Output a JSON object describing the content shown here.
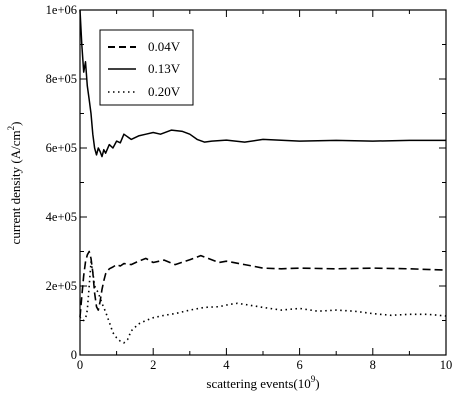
{
  "chart_data": {
    "type": "line",
    "title": "",
    "xlabel": "scattering events(10",
    "xlabel_exp": "9",
    "xlabel_tail": ")",
    "ylabel": "current density (A/cm",
    "ylabel_exp": "2",
    "ylabel_tail": ")",
    "xlim": [
      0,
      10
    ],
    "ylim": [
      0,
      1000000
    ],
    "xticks": [
      0,
      2,
      4,
      6,
      8,
      10
    ],
    "xtick_labels": [
      "0",
      "2",
      "4",
      "6",
      "8",
      "10"
    ],
    "yticks": [
      0,
      200000,
      400000,
      600000,
      800000,
      1000000
    ],
    "ytick_labels": [
      "0",
      "2e+05",
      "4e+05",
      "6e+05",
      "8e+05",
      "1e+06"
    ],
    "grid": false,
    "legend_position": "top-left",
    "series": [
      {
        "name": "0.04V",
        "style": "dashed",
        "color": "#000000",
        "x": [
          0,
          0.05,
          0.1,
          0.15,
          0.2,
          0.25,
          0.3,
          0.35,
          0.4,
          0.45,
          0.5,
          0.55,
          0.6,
          0.65,
          0.7,
          0.8,
          0.9,
          1.0,
          1.1,
          1.2,
          1.4,
          1.6,
          1.8,
          2.0,
          2.3,
          2.6,
          3.0,
          3.3,
          3.5,
          3.8,
          4.0,
          4.5,
          5.0,
          5.5,
          6.0,
          7.0,
          8.0,
          9.0,
          10.0
        ],
        "y": [
          110000,
          170000,
          230000,
          270000,
          290000,
          300000,
          280000,
          240000,
          180000,
          140000,
          130000,
          155000,
          190000,
          215000,
          235000,
          250000,
          255000,
          262000,
          258000,
          265000,
          262000,
          272000,
          280000,
          268000,
          275000,
          262000,
          276000,
          288000,
          280000,
          268000,
          272000,
          262000,
          252000,
          250000,
          252000,
          250000,
          252000,
          250000,
          246000
        ]
      },
      {
        "name": "0.13V",
        "style": "solid",
        "color": "#000000",
        "x": [
          0,
          0.05,
          0.1,
          0.15,
          0.2,
          0.25,
          0.3,
          0.35,
          0.4,
          0.45,
          0.5,
          0.55,
          0.6,
          0.65,
          0.7,
          0.8,
          0.9,
          1.0,
          1.1,
          1.2,
          1.4,
          1.6,
          1.8,
          2.0,
          2.2,
          2.5,
          2.8,
          3.0,
          3.2,
          3.4,
          3.6,
          4.0,
          4.5,
          5.0,
          6.0,
          7.0,
          8.0,
          9.0,
          10.0
        ],
        "y": [
          1000000,
          900000,
          820000,
          850000,
          780000,
          740000,
          700000,
          640000,
          600000,
          580000,
          600000,
          590000,
          575000,
          595000,
          585000,
          610000,
          600000,
          620000,
          615000,
          640000,
          625000,
          635000,
          640000,
          645000,
          640000,
          652000,
          648000,
          640000,
          625000,
          617000,
          620000,
          623000,
          617000,
          625000,
          620000,
          622000,
          620000,
          622000,
          622000
        ]
      },
      {
        "name": "0.20V",
        "style": "dotted",
        "color": "#000000",
        "x": [
          0,
          0.05,
          0.1,
          0.15,
          0.2,
          0.25,
          0.3,
          0.35,
          0.4,
          0.5,
          0.6,
          0.7,
          0.8,
          0.9,
          1.0,
          1.1,
          1.2,
          1.3,
          1.4,
          1.6,
          1.8,
          2.0,
          2.3,
          2.6,
          3.0,
          3.4,
          3.8,
          4.1,
          4.3,
          4.6,
          5.0,
          5.5,
          6.0,
          6.5,
          7.0,
          7.5,
          8.0,
          8.5,
          9.0,
          9.5,
          10.0
        ],
        "y": [
          110000,
          100000,
          100000,
          105000,
          130000,
          200000,
          270000,
          240000,
          200000,
          180000,
          150000,
          125000,
          95000,
          65000,
          50000,
          40000,
          35000,
          45000,
          70000,
          90000,
          100000,
          108000,
          115000,
          120000,
          130000,
          138000,
          140000,
          147000,
          150000,
          145000,
          138000,
          130000,
          135000,
          127000,
          130000,
          127000,
          120000,
          115000,
          118000,
          118000,
          113000
        ]
      }
    ]
  }
}
